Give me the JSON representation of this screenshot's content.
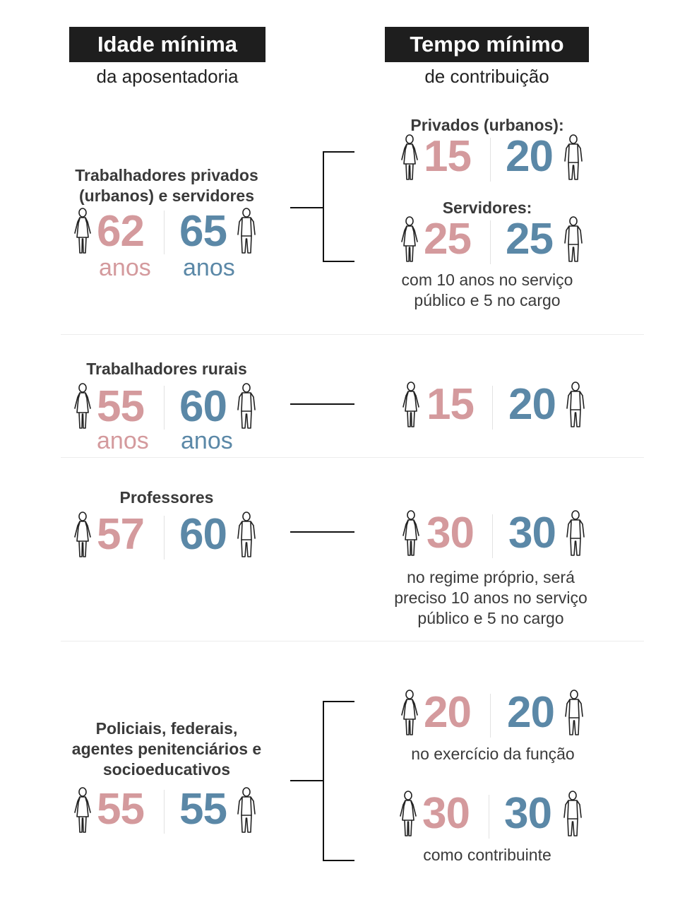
{
  "header": {
    "left_title": "Idade mínima",
    "left_subtitle": "da aposentadoria",
    "right_title": "Tempo mínimo",
    "right_subtitle": "de contribuição"
  },
  "colors": {
    "female": "#d49a9d",
    "male": "#5b88a7",
    "header_bg": "#1e1e1e"
  },
  "icons": {
    "female": "female-figure-icon",
    "male": "male-figure-icon"
  },
  "rows": [
    {
      "label_line1": "Trabalhadores privados",
      "label_line2": "(urbanos) e servidores",
      "age_female": "62",
      "age_male": "65",
      "age_unit": "anos",
      "contribution": [
        {
          "title": "Privados (urbanos):",
          "female": "15",
          "male": "20"
        },
        {
          "title": "Servidores:",
          "female": "25",
          "male": "25",
          "note_line1": "com 10 anos no serviço",
          "note_line2": "público e 5 no cargo"
        }
      ]
    },
    {
      "label": "Trabalhadores rurais",
      "age_female": "55",
      "age_male": "60",
      "age_unit": "anos",
      "contribution": {
        "female": "15",
        "male": "20"
      }
    },
    {
      "label": "Professores",
      "age_female": "57",
      "age_male": "60",
      "contribution": {
        "female": "30",
        "male": "30",
        "note_line1": "no regime próprio, será",
        "note_line2": "preciso 10 anos no serviço",
        "note_line3": "público e 5 no cargo"
      }
    },
    {
      "label_line1": "Policiais, federais,",
      "label_line2": "agentes penitenciários e",
      "label_line3": "socioeducativos",
      "age_female": "55",
      "age_male": "55",
      "contribution": [
        {
          "female": "20",
          "male": "20",
          "note": "no exercício da função"
        },
        {
          "female": "30",
          "male": "30",
          "note": "como contribuinte"
        }
      ]
    }
  ]
}
